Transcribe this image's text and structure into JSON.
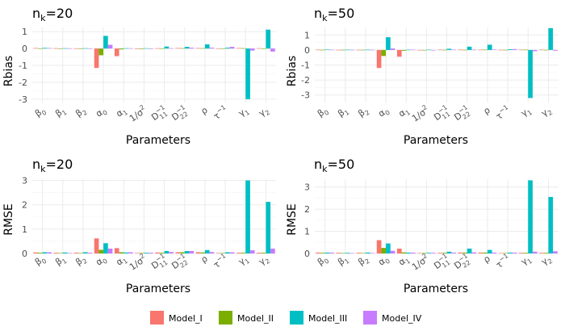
{
  "colors": {
    "Model_I": "#F8766D",
    "Model_II": "#7CAE00",
    "Model_III": "#00BFC4",
    "Model_IV": "#C77CFF"
  },
  "legend": {
    "items": [
      "Model_I",
      "Model_II",
      "Model_III",
      "Model_IV"
    ]
  },
  "chart_data": [
    {
      "type": "bar",
      "title_base": "n",
      "title_sub": "k",
      "title_rest": "=20",
      "xlabel": "Parameters",
      "ylabel": "Rbias",
      "ylim": [
        -3.2,
        1.25
      ],
      "yticks": [
        1,
        0,
        -1,
        -2,
        -3
      ],
      "categories": [
        "beta0",
        "beta1",
        "beta2",
        "alpha0",
        "alpha1",
        "inv_sigma2",
        "D11_inv",
        "D22_inv",
        "rho",
        "tau_inv",
        "gamma1",
        "gamma2"
      ],
      "series": [
        {
          "name": "Model_I",
          "values": [
            0.03,
            0.02,
            0.01,
            -1.15,
            -0.45,
            -0.02,
            0.02,
            0.03,
            0.03,
            0.01,
            0.03,
            0.02
          ]
        },
        {
          "name": "Model_II",
          "values": [
            0.01,
            0.01,
            0.01,
            -0.4,
            -0.05,
            -0.02,
            0.01,
            0.02,
            0.02,
            0.01,
            0.02,
            0.01
          ]
        },
        {
          "name": "Model_III",
          "values": [
            0.04,
            0.02,
            0.02,
            0.75,
            0.02,
            0.02,
            0.12,
            0.1,
            0.25,
            0.05,
            -3.0,
            1.12
          ]
        },
        {
          "name": "Model_IV",
          "values": [
            0.03,
            0.01,
            0.01,
            0.22,
            0.02,
            -0.02,
            0.02,
            0.05,
            0.05,
            0.1,
            -0.12,
            -0.18
          ]
        }
      ]
    },
    {
      "type": "bar",
      "title_base": "n",
      "title_sub": "k",
      "title_rest": "=50",
      "xlabel": "Parameters",
      "ylabel": "Rbias",
      "ylim": [
        -3.5,
        1.5
      ],
      "yticks": [
        1,
        0,
        -1,
        -2,
        -3
      ],
      "categories": [
        "beta0",
        "beta1",
        "beta2",
        "alpha0",
        "alpha1",
        "inv_sigma2",
        "D11_inv",
        "D22_inv",
        "rho",
        "tau_inv",
        "gamma1",
        "gamma2"
      ],
      "series": [
        {
          "name": "Model_I",
          "values": [
            0.02,
            0.01,
            0.01,
            -1.2,
            -0.45,
            -0.02,
            0.02,
            0.02,
            0.02,
            0.01,
            0.02,
            0.02
          ]
        },
        {
          "name": "Model_II",
          "values": [
            0.01,
            0.01,
            0.01,
            -0.4,
            -0.05,
            -0.01,
            0.01,
            0.01,
            0.02,
            0.01,
            0.02,
            0.01
          ]
        },
        {
          "name": "Model_III",
          "values": [
            0.03,
            0.02,
            0.02,
            0.85,
            0.02,
            0.02,
            0.08,
            0.22,
            0.35,
            0.05,
            -3.2,
            1.45
          ]
        },
        {
          "name": "Model_IV",
          "values": [
            0.02,
            0.01,
            0.01,
            0.1,
            0.02,
            -0.02,
            0.02,
            0.02,
            0.03,
            0.06,
            -0.08,
            -0.05
          ]
        }
      ]
    },
    {
      "type": "bar",
      "title_base": "n",
      "title_sub": "k",
      "title_rest": "=20",
      "xlabel": "Parameters",
      "ylabel": "RMSE",
      "ylim": [
        0,
        3.05
      ],
      "yticks": [
        0,
        1,
        2,
        3
      ],
      "categories": [
        "beta0",
        "beta1",
        "beta2",
        "alpha0",
        "alpha1",
        "inv_sigma2",
        "D11_inv",
        "D22_inv",
        "rho",
        "tau_inv",
        "gamma1",
        "gamma2"
      ],
      "series": [
        {
          "name": "Model_I",
          "values": [
            0.04,
            0.03,
            0.03,
            0.62,
            0.22,
            0.02,
            0.04,
            0.05,
            0.05,
            0.02,
            0.03,
            0.03
          ]
        },
        {
          "name": "Model_II",
          "values": [
            0.03,
            0.02,
            0.02,
            0.15,
            0.05,
            0.02,
            0.03,
            0.05,
            0.04,
            0.02,
            0.03,
            0.03
          ]
        },
        {
          "name": "Model_III",
          "values": [
            0.05,
            0.04,
            0.05,
            0.42,
            0.04,
            0.03,
            0.1,
            0.1,
            0.14,
            0.05,
            3.0,
            2.12
          ]
        },
        {
          "name": "Model_IV",
          "values": [
            0.05,
            0.02,
            0.03,
            0.2,
            0.05,
            0.03,
            0.06,
            0.1,
            0.06,
            0.05,
            0.13,
            0.2
          ]
        }
      ]
    },
    {
      "type": "bar",
      "title_base": "n",
      "title_sub": "k",
      "title_rest": "=50",
      "xlabel": "Parameters",
      "ylabel": "RMSE",
      "ylim": [
        0,
        3.35
      ],
      "yticks": [
        0,
        1,
        2,
        3
      ],
      "categories": [
        "beta0",
        "beta1",
        "beta2",
        "alpha0",
        "alpha1",
        "inv_sigma2",
        "D11_inv",
        "D22_inv",
        "rho",
        "tau_inv",
        "gamma1",
        "gamma2"
      ],
      "series": [
        {
          "name": "Model_I",
          "values": [
            0.04,
            0.03,
            0.03,
            0.6,
            0.22,
            0.02,
            0.03,
            0.04,
            0.04,
            0.02,
            0.03,
            0.03
          ]
        },
        {
          "name": "Model_II",
          "values": [
            0.03,
            0.02,
            0.02,
            0.25,
            0.05,
            0.02,
            0.03,
            0.04,
            0.04,
            0.02,
            0.03,
            0.03
          ]
        },
        {
          "name": "Model_III",
          "values": [
            0.04,
            0.03,
            0.04,
            0.45,
            0.04,
            0.03,
            0.08,
            0.22,
            0.16,
            0.04,
            3.3,
            2.55
          ]
        },
        {
          "name": "Model_IV",
          "values": [
            0.04,
            0.02,
            0.02,
            0.12,
            0.04,
            0.03,
            0.04,
            0.05,
            0.04,
            0.04,
            0.08,
            0.1
          ]
        }
      ]
    }
  ]
}
